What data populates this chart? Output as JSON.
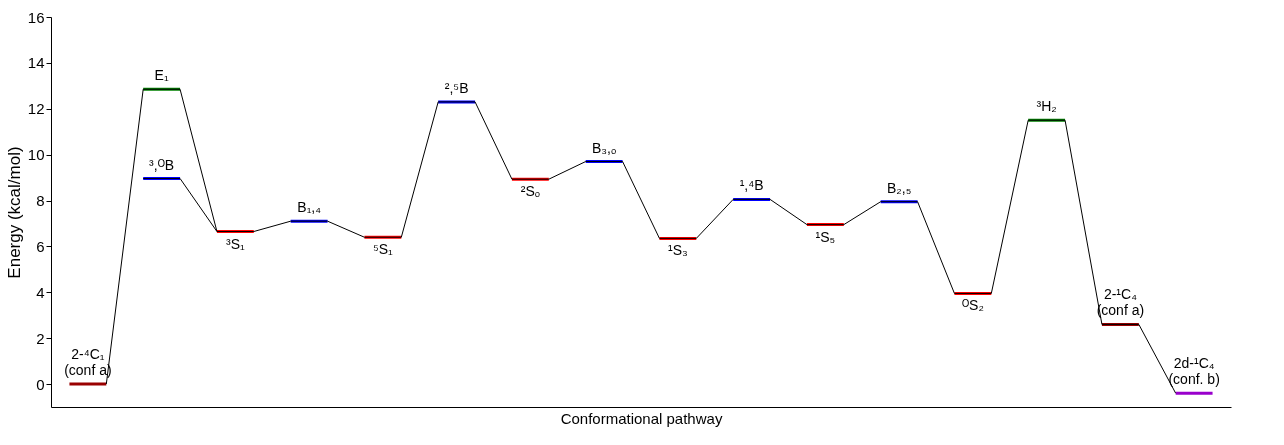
{
  "chart_data": {
    "type": "line",
    "xlabel": "Conformational pathway",
    "ylabel": "Energy (kcal/mol)",
    "categories": [
      null,
      null,
      null,
      null,
      null,
      null,
      null,
      null,
      null,
      null,
      null,
      null,
      null,
      null,
      null,
      null,
      null,
      null,
      null,
      null,
      null,
      null,
      null,
      null,
      null,
      null,
      null,
      null,
      null,
      null,
      null,
      null
    ],
    "ylim": [
      -1,
      16
    ],
    "yticks": [
      0,
      2,
      4,
      6,
      8,
      10,
      12,
      14,
      16
    ],
    "tick_labels": "y",
    "series": [
      {
        "color": "#000000",
        "values": [
          null,
          0,
          12.85,
          12.85,
          6.65,
          6.65,
          7.1,
          7.1,
          6.4,
          6.4,
          12.3,
          12.3,
          8.93,
          8.93,
          9.7,
          9.7,
          6.35,
          6.35,
          8.05,
          8.05,
          6.95,
          6.95,
          7.95,
          7.95,
          3.95,
          3.95,
          11.5,
          11.5,
          2.6,
          2.6,
          -0.4,
          null
        ]
      },
      {
        "color": "#000000",
        "values": [
          null,
          null,
          8.96,
          8.96,
          6.65,
          null,
          null,
          null,
          null,
          null,
          null,
          null,
          null,
          null,
          null,
          null,
          null,
          null,
          null,
          null,
          null,
          null,
          null,
          null,
          null,
          null,
          null,
          null,
          null,
          null,
          null,
          null
        ]
      },
      {
        "name": "2-⁴C₁\n(conf a)",
        "color": "#990000",
        "values": [
          0,
          0,
          null,
          null,
          null,
          null,
          null,
          null,
          null,
          null,
          null,
          null,
          null,
          null,
          null,
          null,
          null,
          null,
          null,
          null,
          null,
          null,
          null,
          null,
          null,
          null,
          null,
          null,
          null,
          null,
          null,
          null
        ]
      },
      {
        "name": "E₁",
        "color": "#008000",
        "values": [
          null,
          null,
          12.85,
          12.85,
          null,
          null,
          null,
          null,
          null,
          null,
          null,
          null,
          null,
          null,
          null,
          null,
          null,
          null,
          null,
          null,
          null,
          null,
          null,
          null,
          null,
          null,
          null,
          null,
          null,
          null,
          null,
          null
        ]
      },
      {
        "name": "³,ᴼB",
        "color": "#0000ff",
        "values": [
          null,
          null,
          8.96,
          8.96,
          null,
          null,
          null,
          null,
          null,
          null,
          null,
          null,
          null,
          null,
          null,
          null,
          null,
          null,
          null,
          null,
          null,
          null,
          null,
          null,
          null,
          null,
          null,
          null,
          null,
          null,
          null,
          null
        ]
      },
      {
        "name": "³S₁",
        "color": "#ff0000",
        "values": [
          null,
          null,
          null,
          null,
          6.65,
          6.65,
          null,
          null,
          null,
          null,
          null,
          null,
          null,
          null,
          null,
          null,
          null,
          null,
          null,
          null,
          null,
          null,
          null,
          null,
          null,
          null,
          null,
          null,
          null,
          null,
          null,
          null
        ]
      },
      {
        "name": "B₁,₄",
        "color": "#0000ff",
        "values": [
          null,
          null,
          null,
          null,
          null,
          null,
          7.1,
          7.1,
          null,
          null,
          null,
          null,
          null,
          null,
          null,
          null,
          null,
          null,
          null,
          null,
          null,
          null,
          null,
          null,
          null,
          null,
          null,
          null,
          null,
          null,
          null,
          null
        ]
      },
      {
        "name": "⁵S₁",
        "color": "#ff0000",
        "values": [
          null,
          null,
          null,
          null,
          null,
          null,
          null,
          null,
          6.4,
          6.4,
          null,
          null,
          null,
          null,
          null,
          null,
          null,
          null,
          null,
          null,
          null,
          null,
          null,
          null,
          null,
          null,
          null,
          null,
          null,
          null,
          null,
          null
        ]
      },
      {
        "name": "²,⁵B",
        "color": "#0000ff",
        "values": [
          null,
          null,
          null,
          null,
          null,
          null,
          null,
          null,
          null,
          null,
          12.3,
          12.3,
          null,
          null,
          null,
          null,
          null,
          null,
          null,
          null,
          null,
          null,
          null,
          null,
          null,
          null,
          null,
          null,
          null,
          null,
          null,
          null
        ]
      },
      {
        "name": "²Sₒ",
        "color": "#ff0000",
        "values": [
          null,
          null,
          null,
          null,
          null,
          null,
          null,
          null,
          null,
          null,
          null,
          null,
          8.93,
          8.93,
          null,
          null,
          null,
          null,
          null,
          null,
          null,
          null,
          null,
          null,
          null,
          null,
          null,
          null,
          null,
          null,
          null,
          null
        ]
      },
      {
        "name": "B₃,ₒ",
        "color": "#0000ff",
        "values": [
          null,
          null,
          null,
          null,
          null,
          null,
          null,
          null,
          null,
          null,
          null,
          null,
          null,
          null,
          9.7,
          9.7,
          null,
          null,
          null,
          null,
          null,
          null,
          null,
          null,
          null,
          null,
          null,
          null,
          null,
          null,
          null,
          null
        ]
      },
      {
        "name": "¹S₃",
        "color": "#ff0000",
        "values": [
          null,
          null,
          null,
          null,
          null,
          null,
          null,
          null,
          null,
          null,
          null,
          null,
          null,
          null,
          null,
          null,
          6.35,
          6.35,
          null,
          null,
          null,
          null,
          null,
          null,
          null,
          null,
          null,
          null,
          null,
          null,
          null,
          null
        ]
      },
      {
        "name": "¹,⁴B",
        "color": "#0000ff",
        "values": [
          null,
          null,
          null,
          null,
          null,
          null,
          null,
          null,
          null,
          null,
          null,
          null,
          null,
          null,
          null,
          null,
          null,
          null,
          8.05,
          8.05,
          null,
          null,
          null,
          null,
          null,
          null,
          null,
          null,
          null,
          null,
          null,
          null
        ]
      },
      {
        "name": "¹S₅",
        "color": "#ff0000",
        "values": [
          null,
          null,
          null,
          null,
          null,
          null,
          null,
          null,
          null,
          null,
          null,
          null,
          null,
          null,
          null,
          null,
          null,
          null,
          null,
          null,
          6.95,
          6.95,
          null,
          null,
          null,
          null,
          null,
          null,
          null,
          null,
          null,
          null
        ]
      },
      {
        "name": "B₂,₅",
        "color": "#0000ff",
        "values": [
          null,
          null,
          null,
          null,
          null,
          null,
          null,
          null,
          null,
          null,
          null,
          null,
          null,
          null,
          null,
          null,
          null,
          null,
          null,
          null,
          null,
          null,
          7.95,
          7.95,
          null,
          null,
          null,
          null,
          null,
          null,
          null,
          null
        ]
      },
      {
        "name": "ᴼS₂",
        "color": "#ff0000",
        "values": [
          null,
          null,
          null,
          null,
          null,
          null,
          null,
          null,
          null,
          null,
          null,
          null,
          null,
          null,
          null,
          null,
          null,
          null,
          null,
          null,
          null,
          null,
          null,
          null,
          3.95,
          3.95,
          null,
          null,
          null,
          null,
          null,
          null
        ]
      },
      {
        "name": "³H₂",
        "color": "#008000",
        "values": [
          null,
          null,
          null,
          null,
          null,
          null,
          null,
          null,
          null,
          null,
          null,
          null,
          null,
          null,
          null,
          null,
          null,
          null,
          null,
          null,
          null,
          null,
          null,
          null,
          null,
          null,
          11.5,
          11.5,
          null,
          null,
          null,
          null
        ]
      },
      {
        "name": "2-¹C₄\n(conf a)",
        "color": "#990000",
        "values": [
          null,
          null,
          null,
          null,
          null,
          null,
          null,
          null,
          null,
          null,
          null,
          null,
          null,
          null,
          null,
          null,
          null,
          null,
          null,
          null,
          null,
          null,
          null,
          null,
          null,
          null,
          null,
          null,
          2.6,
          2.6,
          null,
          null
        ]
      },
      {
        "name": "2d-¹C₄\n(conf. b)",
        "color": "#9900cc",
        "values": [
          null,
          null,
          null,
          null,
          null,
          null,
          null,
          null,
          null,
          null,
          null,
          null,
          null,
          null,
          null,
          null,
          null,
          null,
          null,
          null,
          null,
          null,
          null,
          null,
          null,
          null,
          null,
          null,
          null,
          null,
          -0.4,
          -0.4
        ]
      }
    ]
  }
}
